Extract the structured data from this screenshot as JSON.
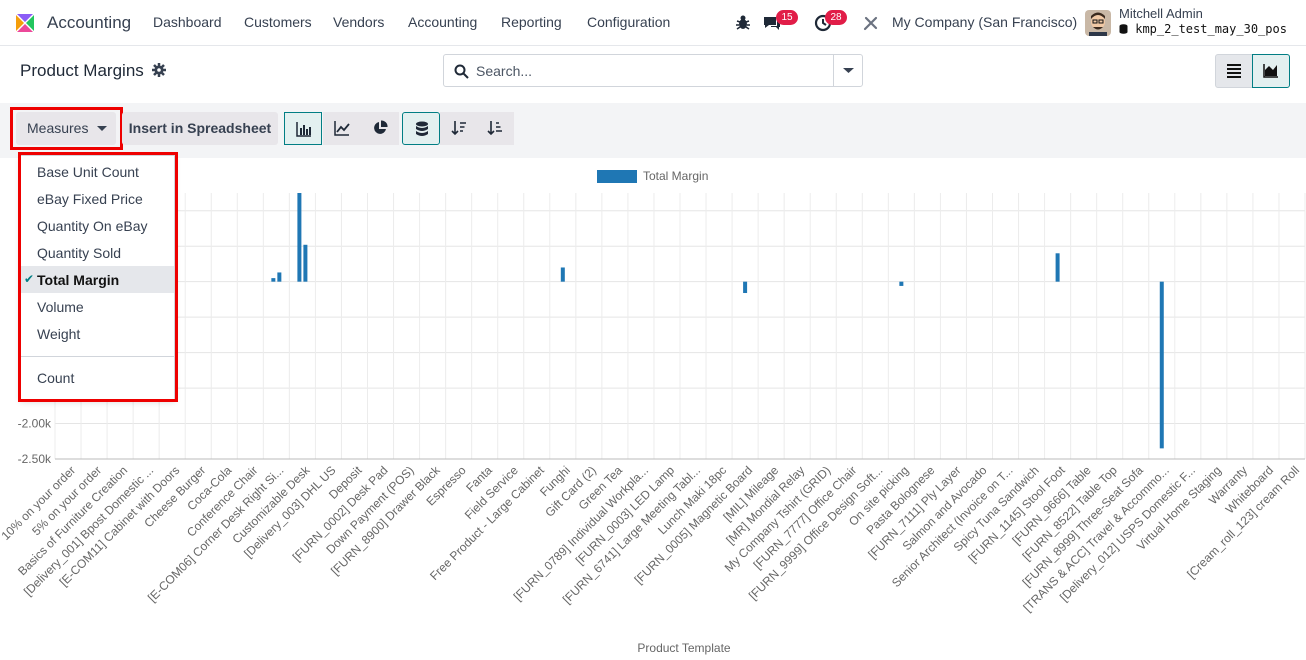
{
  "navbar": {
    "app_name": "Accounting",
    "menu": [
      "Dashboard",
      "Customers",
      "Vendors",
      "Accounting",
      "Reporting",
      "Configuration"
    ],
    "messages_count": "15",
    "activities_count": "28",
    "company": "My Company (San Francisco)",
    "user_name": "Mitchell Admin",
    "db_name": "kmp_2_test_may_30_pos"
  },
  "control_panel": {
    "breadcrumb": "Product Margins",
    "search_placeholder": "Search..."
  },
  "toolbar": {
    "measures_label": "Measures",
    "spreadsheet_label": "Insert in Spreadsheet"
  },
  "measures_menu": {
    "items": [
      {
        "label": "Base Unit Count",
        "selected": false
      },
      {
        "label": "eBay Fixed Price",
        "selected": false
      },
      {
        "label": "Quantity On eBay",
        "selected": false
      },
      {
        "label": "Quantity Sold",
        "selected": false
      },
      {
        "label": "Total Margin",
        "selected": true
      },
      {
        "label": "Volume",
        "selected": false
      },
      {
        "label": "Weight",
        "selected": false
      }
    ],
    "count_label": "Count"
  },
  "colors": {
    "accent": "#017e84",
    "bar": "#1f77b4",
    "highlight": "#ee0000"
  },
  "chart_data": {
    "type": "bar",
    "title": "",
    "xlabel": "Product Template",
    "ylabel": "",
    "legend": [
      "Total Margin"
    ],
    "legend_position": "top-center",
    "grid": true,
    "y_ticks": [
      "-2.00k",
      "-2.50k"
    ],
    "categories": [
      "10% on your order",
      "5% on your order",
      "Basics of Furniture Creation",
      "[Delivery_001] Bpost Domestic ...",
      "[E-COM11] Cabinet with Doors",
      "Cheese Burger",
      "Coca-Cola",
      "Conference Chair",
      "[E-COM06] Corner Desk Right Si...",
      "Customizable Desk",
      "[Delivery_003] DHL US",
      "Deposit",
      "[FURN_0002] Desk Pad",
      "Down Payment (POS)",
      "[FURN_8900] Drawer Black",
      "Espresso",
      "Fanta",
      "Field Service",
      "Free Product - Large Cabinet",
      "Funghi",
      "Gift Card (2)",
      "Green Tea",
      "[FURN_0789] Individual Workpla...",
      "[FURN_0003] LED Lamp",
      "[FURN_6741] Large Meeting Tabl...",
      "Lunch Maki 18pc",
      "[FURN_0005] Magnetic Board",
      "[MIL] Mileage",
      "[MR] Mondial Relay",
      "My Company Tshirt (GRID)",
      "[FURN_7777] Office Chair",
      "[FURN_9999] Office Design Soft...",
      "On site picking",
      "Pasta Bolognese",
      "[FURN_7111] Ply Layer",
      "Salmon and Avocado",
      "Senior Architect (Invoice on T...",
      "Spicy Tuna Sandwich",
      "[FURN_1145] Stool Foot",
      "[FURN_9666] Table",
      "[FURN_8522] Table Top",
      "[FURN_8999] Three-Seat Sofa",
      "[TRANS & ACC] Travel & Accommo...",
      "[Delivery_012] USPS Domestic F...",
      "Virtual Home Staging",
      "Warranty",
      "Whiteboard",
      "[Cream_roll_123] cream Roll"
    ],
    "values": [
      0,
      0,
      0,
      0,
      0,
      0,
      0,
      0,
      50,
      1250,
      0,
      0,
      0,
      0,
      0,
      0,
      0,
      0,
      0,
      200,
      0,
      0,
      0,
      0,
      0,
      0,
      -160,
      0,
      0,
      0,
      0,
      0,
      -60,
      0,
      0,
      0,
      0,
      0,
      400,
      0,
      0,
      0,
      -2350,
      0,
      0,
      0,
      0,
      0
    ],
    "values_secondary": {
      "[E-COM06] Corner Desk Right Si...": 130,
      "Customizable Desk": 520
    },
    "ylim": [
      -2500,
      1250
    ]
  }
}
